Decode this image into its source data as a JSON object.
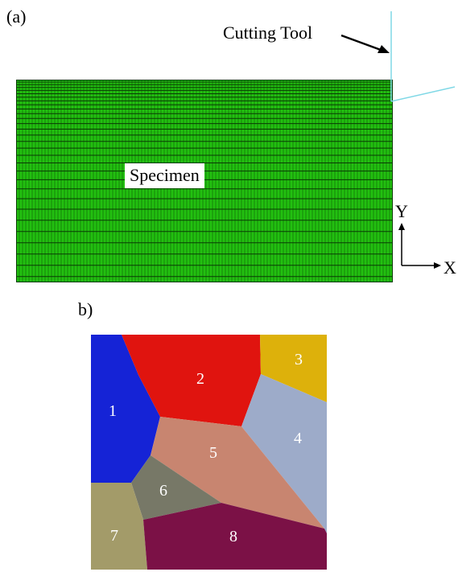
{
  "panel_a": {
    "label": "(a)",
    "tool_label": "Cutting Tool",
    "specimen_label": "Specimen",
    "axis_y": "Y",
    "axis_x": "X",
    "mesh_color": "#22c010",
    "mesh_line_color": "#0a3a05",
    "tool_color": "#7fd8e6"
  },
  "panel_b": {
    "label": "b)",
    "grains": [
      {
        "id": "1",
        "color": "#1523d6"
      },
      {
        "id": "2",
        "color": "#e0140f"
      },
      {
        "id": "3",
        "color": "#ddb10b"
      },
      {
        "id": "4",
        "color": "#9dabc9"
      },
      {
        "id": "5",
        "color": "#c88570"
      },
      {
        "id": "6",
        "color": "#777867"
      },
      {
        "id": "7",
        "color": "#a39b69"
      },
      {
        "id": "8",
        "color": "#7b1146"
      }
    ]
  }
}
